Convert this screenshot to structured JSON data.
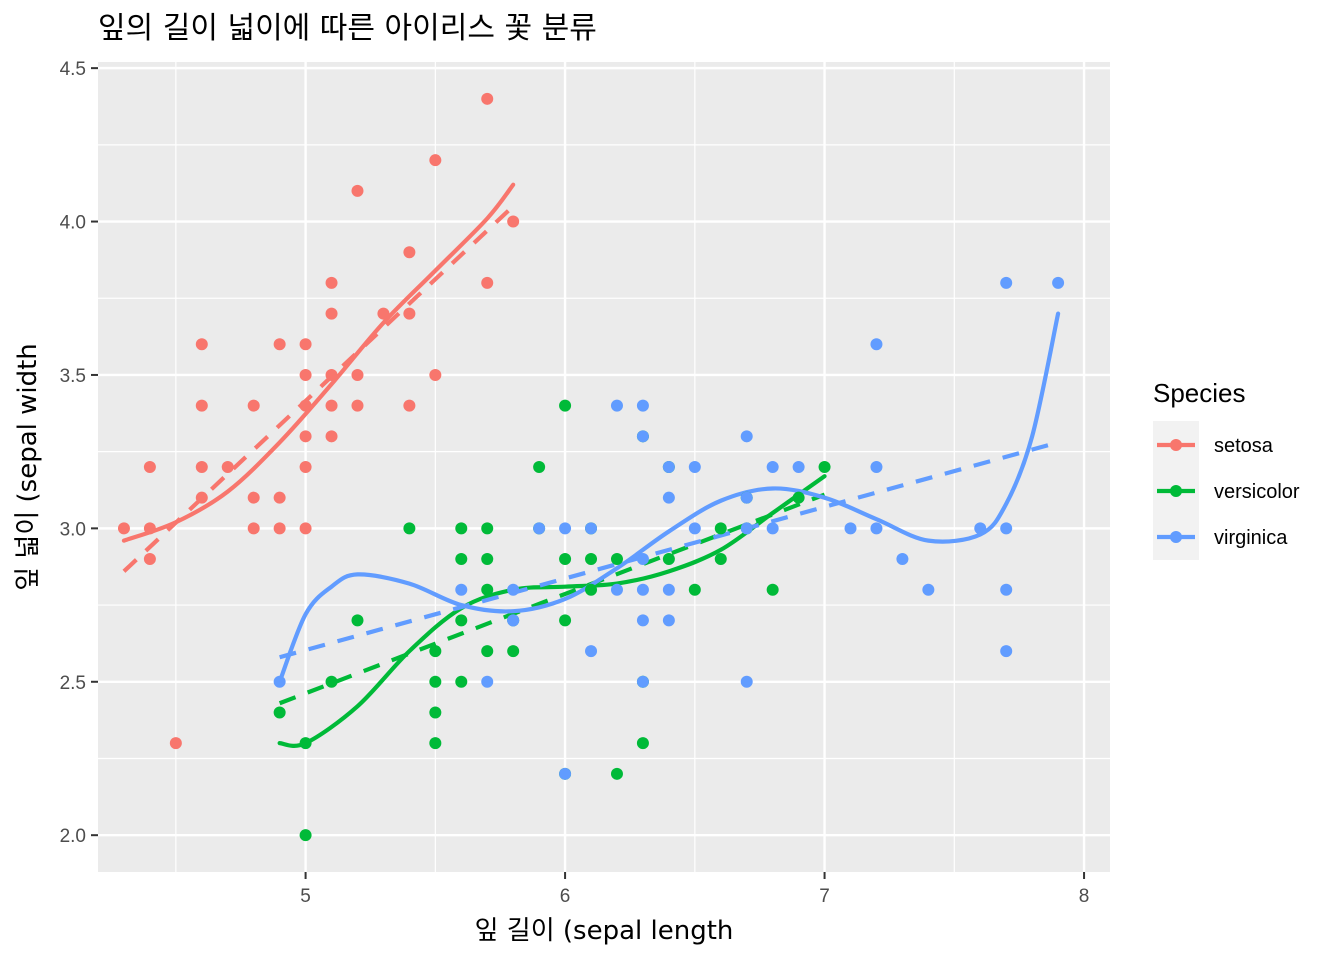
{
  "chart_data": {
    "type": "scatter",
    "title": "잎의 길이 넓이에 따른 아이리스 꽃 분류",
    "xlabel": "잎 길이 (sepal length",
    "ylabel": "잎 넓이 (sepal width",
    "xlim": [
      4.2,
      8.1
    ],
    "ylim": [
      1.88,
      4.52
    ],
    "x_ticks": [
      5,
      6,
      7,
      8
    ],
    "y_ticks": [
      2.0,
      2.5,
      3.0,
      3.5,
      4.0,
      4.5
    ],
    "x_tick_labels": [
      "5",
      "6",
      "7",
      "8"
    ],
    "y_tick_labels": [
      "2.0",
      "2.5",
      "3.0",
      "3.5",
      "4.0",
      "4.5"
    ],
    "grid": true,
    "background_color": "#ebebeb",
    "grid_color": "#ffffff",
    "legend": {
      "title": "Species",
      "position": "right"
    },
    "series": [
      {
        "name": "setosa",
        "color": "#f8766d",
        "points": [
          [
            4.3,
            3.0
          ],
          [
            4.4,
            3.0
          ],
          [
            4.4,
            3.2
          ],
          [
            4.4,
            2.9
          ],
          [
            4.5,
            2.3
          ],
          [
            4.6,
            3.1
          ],
          [
            4.6,
            3.4
          ],
          [
            4.6,
            3.6
          ],
          [
            4.6,
            3.2
          ],
          [
            4.7,
            3.2
          ],
          [
            4.8,
            3.4
          ],
          [
            4.8,
            3.0
          ],
          [
            4.8,
            3.1
          ],
          [
            4.9,
            3.0
          ],
          [
            4.9,
            3.1
          ],
          [
            4.9,
            3.6
          ],
          [
            5.0,
            3.6
          ],
          [
            5.0,
            3.4
          ],
          [
            5.0,
            3.0
          ],
          [
            5.0,
            3.3
          ],
          [
            5.0,
            3.5
          ],
          [
            5.0,
            3.2
          ],
          [
            5.1,
            3.5
          ],
          [
            5.1,
            3.8
          ],
          [
            5.1,
            3.7
          ],
          [
            5.1,
            3.3
          ],
          [
            5.1,
            3.4
          ],
          [
            5.2,
            3.5
          ],
          [
            5.2,
            3.4
          ],
          [
            5.2,
            4.1
          ],
          [
            5.3,
            3.7
          ],
          [
            5.4,
            3.9
          ],
          [
            5.4,
            3.7
          ],
          [
            5.4,
            3.4
          ],
          [
            5.5,
            4.2
          ],
          [
            5.5,
            3.5
          ],
          [
            5.7,
            4.4
          ],
          [
            5.7,
            3.8
          ],
          [
            5.8,
            4.0
          ]
        ],
        "lm_line": [
          [
            4.3,
            2.86
          ],
          [
            5.8,
            4.05
          ]
        ],
        "smooth_line": [
          [
            4.3,
            2.96
          ],
          [
            4.5,
            3.02
          ],
          [
            4.7,
            3.12
          ],
          [
            4.9,
            3.28
          ],
          [
            5.1,
            3.47
          ],
          [
            5.3,
            3.67
          ],
          [
            5.5,
            3.84
          ],
          [
            5.7,
            4.01
          ],
          [
            5.8,
            4.12
          ]
        ]
      },
      {
        "name": "versicolor",
        "color": "#00ba38",
        "points": [
          [
            4.9,
            2.4
          ],
          [
            5.0,
            2.0
          ],
          [
            5.0,
            2.3
          ],
          [
            5.1,
            2.5
          ],
          [
            5.2,
            2.7
          ],
          [
            5.4,
            3.0
          ],
          [
            5.5,
            2.3
          ],
          [
            5.5,
            2.4
          ],
          [
            5.5,
            2.5
          ],
          [
            5.5,
            2.6
          ],
          [
            5.6,
            2.9
          ],
          [
            5.6,
            3.0
          ],
          [
            5.6,
            2.5
          ],
          [
            5.6,
            2.7
          ],
          [
            5.7,
            2.8
          ],
          [
            5.7,
            2.6
          ],
          [
            5.7,
            2.9
          ],
          [
            5.7,
            3.0
          ],
          [
            5.8,
            2.7
          ],
          [
            5.8,
            2.6
          ],
          [
            5.9,
            3.0
          ],
          [
            5.9,
            3.2
          ],
          [
            6.0,
            2.2
          ],
          [
            6.0,
            2.7
          ],
          [
            6.0,
            2.9
          ],
          [
            6.0,
            3.4
          ],
          [
            6.1,
            2.9
          ],
          [
            6.1,
            2.8
          ],
          [
            6.1,
            3.0
          ],
          [
            6.2,
            2.2
          ],
          [
            6.2,
            2.9
          ],
          [
            6.3,
            2.3
          ],
          [
            6.3,
            2.5
          ],
          [
            6.3,
            3.3
          ],
          [
            6.4,
            3.2
          ],
          [
            6.4,
            2.9
          ],
          [
            6.5,
            2.8
          ],
          [
            6.6,
            2.9
          ],
          [
            6.6,
            3.0
          ],
          [
            6.7,
            3.1
          ],
          [
            6.7,
            3.0
          ],
          [
            6.8,
            2.8
          ],
          [
            6.9,
            3.1
          ],
          [
            7.0,
            3.2
          ]
        ],
        "lm_line": [
          [
            4.9,
            2.43
          ],
          [
            7.0,
            3.11
          ]
        ],
        "smooth_line": [
          [
            4.9,
            2.3
          ],
          [
            5.0,
            2.3
          ],
          [
            5.2,
            2.42
          ],
          [
            5.4,
            2.6
          ],
          [
            5.6,
            2.74
          ],
          [
            5.8,
            2.8
          ],
          [
            6.0,
            2.81
          ],
          [
            6.2,
            2.82
          ],
          [
            6.4,
            2.86
          ],
          [
            6.6,
            2.93
          ],
          [
            6.8,
            3.05
          ],
          [
            7.0,
            3.17
          ]
        ]
      },
      {
        "name": "virginica",
        "color": "#619cff",
        "points": [
          [
            4.9,
            2.5
          ],
          [
            5.6,
            2.8
          ],
          [
            5.7,
            2.5
          ],
          [
            5.8,
            2.8
          ],
          [
            5.8,
            2.7
          ],
          [
            5.8,
            2.7
          ],
          [
            5.9,
            3.0
          ],
          [
            6.0,
            2.2
          ],
          [
            6.0,
            3.0
          ],
          [
            6.1,
            3.0
          ],
          [
            6.1,
            2.6
          ],
          [
            6.2,
            3.4
          ],
          [
            6.2,
            2.8
          ],
          [
            6.3,
            3.3
          ],
          [
            6.3,
            2.9
          ],
          [
            6.3,
            2.7
          ],
          [
            6.3,
            2.8
          ],
          [
            6.3,
            2.5
          ],
          [
            6.3,
            3.4
          ],
          [
            6.4,
            2.8
          ],
          [
            6.4,
            2.7
          ],
          [
            6.4,
            3.2
          ],
          [
            6.4,
            3.1
          ],
          [
            6.5,
            3.0
          ],
          [
            6.5,
            3.2
          ],
          [
            6.7,
            3.3
          ],
          [
            6.7,
            2.5
          ],
          [
            6.7,
            3.0
          ],
          [
            6.7,
            3.1
          ],
          [
            6.8,
            3.0
          ],
          [
            6.8,
            3.2
          ],
          [
            6.9,
            3.2
          ],
          [
            7.1,
            3.0
          ],
          [
            7.2,
            3.6
          ],
          [
            7.2,
            3.2
          ],
          [
            7.2,
            3.0
          ],
          [
            7.3,
            2.9
          ],
          [
            7.4,
            2.8
          ],
          [
            7.6,
            3.0
          ],
          [
            7.7,
            3.8
          ],
          [
            7.7,
            2.6
          ],
          [
            7.7,
            2.8
          ],
          [
            7.7,
            3.0
          ],
          [
            7.9,
            3.8
          ]
        ],
        "lm_line": [
          [
            4.9,
            2.58
          ],
          [
            7.9,
            3.28
          ]
        ],
        "smooth_line": [
          [
            4.9,
            2.5
          ],
          [
            5.0,
            2.72
          ],
          [
            5.1,
            2.81
          ],
          [
            5.2,
            2.85
          ],
          [
            5.4,
            2.82
          ],
          [
            5.6,
            2.75
          ],
          [
            5.8,
            2.73
          ],
          [
            6.0,
            2.77
          ],
          [
            6.2,
            2.87
          ],
          [
            6.4,
            2.99
          ],
          [
            6.6,
            3.09
          ],
          [
            6.8,
            3.13
          ],
          [
            7.0,
            3.1
          ],
          [
            7.2,
            3.03
          ],
          [
            7.4,
            2.96
          ],
          [
            7.6,
            2.98
          ],
          [
            7.7,
            3.08
          ],
          [
            7.8,
            3.3
          ],
          [
            7.9,
            3.7
          ]
        ]
      }
    ]
  }
}
